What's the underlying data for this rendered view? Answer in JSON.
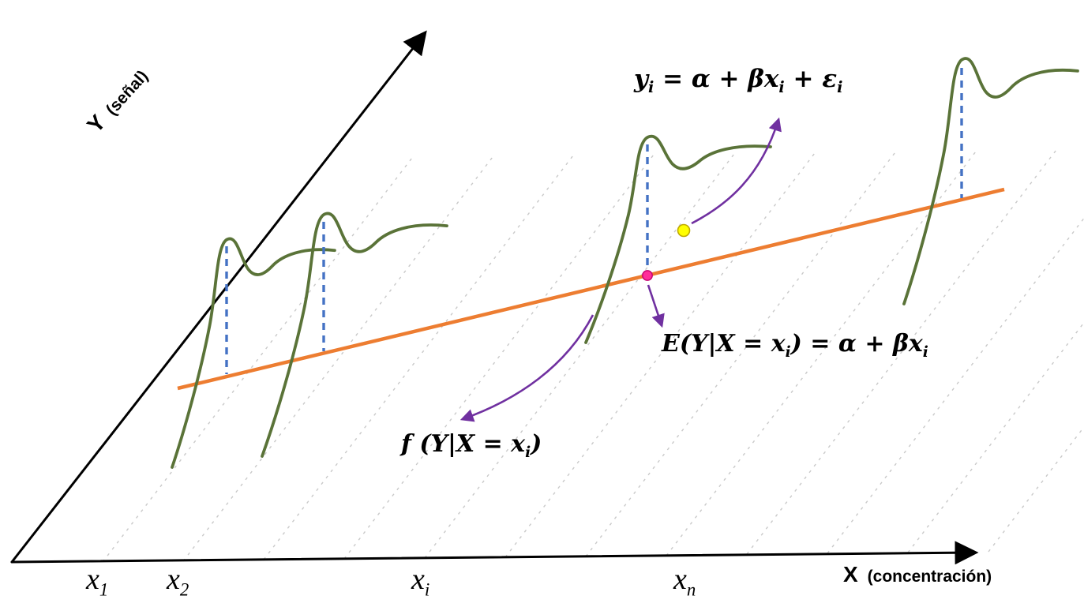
{
  "diagram": {
    "y_axis": {
      "title": "Y",
      "subtitle": "(señal)"
    },
    "x_axis": {
      "title": "X",
      "subtitle": "(concentración)"
    },
    "ticks": [
      [
        {
          "t": "x"
        },
        {
          "s": "1"
        }
      ],
      [
        {
          "t": "x"
        },
        {
          "s": "2"
        }
      ],
      [
        {
          "t": "x"
        },
        {
          "s": "i"
        }
      ],
      [
        {
          "t": "x"
        },
        {
          "s": "n"
        }
      ]
    ],
    "formulas": {
      "model": [
        {
          "t": "y"
        },
        {
          "s": "i"
        },
        {
          "t": " = α + βx"
        },
        {
          "s": "i"
        },
        {
          "t": " + ε"
        },
        {
          "s": "i"
        }
      ],
      "conditional_mean": [
        {
          "t": "E(Y|X = x"
        },
        {
          "s": "i"
        },
        {
          "t": ") = α + βx"
        },
        {
          "s": "i"
        }
      ],
      "density": [
        {
          "t": "f (Y|X = x"
        },
        {
          "s": "i"
        },
        {
          "t": ")"
        }
      ]
    },
    "colors": {
      "axis": "#000000",
      "grid_dash": "#c9c9c9",
      "regression_line": "#ED7D31",
      "curve": "#5a7338",
      "blue_dash": "#4472C4",
      "arrow": "#7030A0",
      "mean_point_fill": "#ff2e9a",
      "mean_point_stroke": "#c4006e",
      "obs_point_fill": "#ffff00",
      "obs_point_stroke": "#bfa900"
    }
  }
}
